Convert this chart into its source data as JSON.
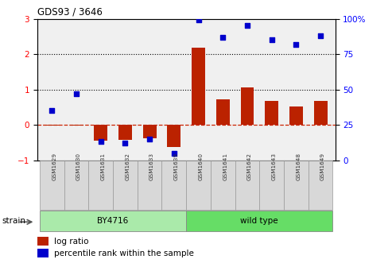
{
  "title": "GDS93 / 3646",
  "samples": [
    "GSM1629",
    "GSM1630",
    "GSM1631",
    "GSM1632",
    "GSM1633",
    "GSM1639",
    "GSM1640",
    "GSM1641",
    "GSM1642",
    "GSM1643",
    "GSM1648",
    "GSM1649"
  ],
  "log_ratio": [
    -0.03,
    -0.02,
    -0.45,
    -0.42,
    -0.38,
    -0.62,
    2.18,
    0.72,
    1.05,
    0.68,
    0.52,
    0.68
  ],
  "percentile": [
    35,
    47,
    13,
    12,
    15,
    5,
    99,
    87,
    95,
    85,
    82,
    88
  ],
  "group_by4716": {
    "label": "BY4716",
    "start": 0,
    "end": 5,
    "color": "#AAEAAA"
  },
  "group_wild": {
    "label": "wild type",
    "start": 6,
    "end": 11,
    "color": "#66DD66"
  },
  "bar_color": "#BB2200",
  "scatter_color": "#0000CC",
  "ylim_left": [
    -1,
    3
  ],
  "ylim_right": [
    0,
    100
  ],
  "yticks_left": [
    -1,
    0,
    1,
    2,
    3
  ],
  "yticks_right": [
    0,
    25,
    50,
    75,
    100
  ],
  "right_tick_labels": [
    "0",
    "25",
    "50",
    "75",
    "100%"
  ],
  "hline_color": "#CC2200",
  "dotted_hlines": [
    1,
    2
  ],
  "strain_label": "strain",
  "legend_log": "log ratio",
  "legend_pct": "percentile rank within the sample"
}
